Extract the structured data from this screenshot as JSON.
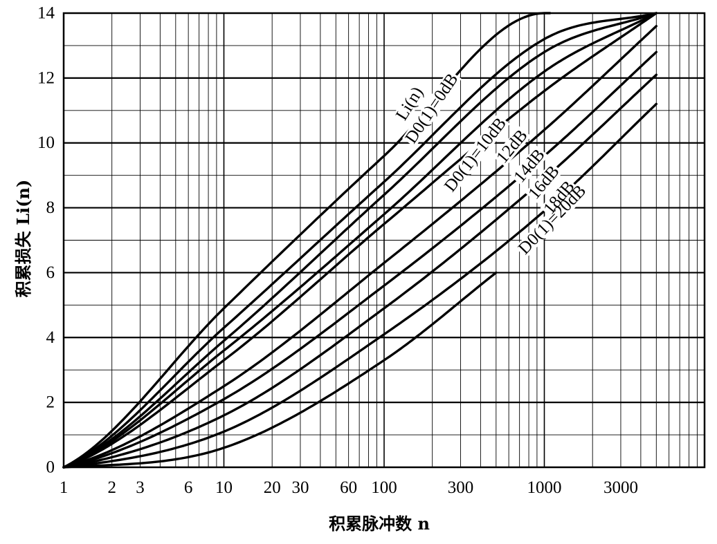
{
  "chart_data": {
    "type": "line",
    "title": "",
    "xlabel": "积累脉冲数 n",
    "ylabel": "积累损失 Li(n)",
    "x_scale": "log",
    "xlim": [
      1,
      10000
    ],
    "ylim": [
      0,
      14
    ],
    "grid": true,
    "x_tick_labels": [
      "1",
      "2",
      "3",
      "6",
      "10",
      "20",
      "30",
      "60",
      "100",
      "300",
      "1000",
      "3000"
    ],
    "y_tick_labels": [
      "0",
      "2",
      "4",
      "6",
      "8",
      "10",
      "12",
      "14"
    ],
    "series": [
      {
        "name": "Li(n) D0(1)=0dB",
        "x": [
          1,
          10,
          100,
          1000,
          5000
        ],
        "y": [
          0.0,
          4.9,
          9.6,
          14.0,
          14.0
        ]
      },
      {
        "name": "",
        "x": [
          1,
          10,
          100,
          1000,
          5000
        ],
        "y": [
          0.0,
          4.3,
          8.8,
          13.2,
          14.0
        ]
      },
      {
        "name": "",
        "x": [
          1,
          10,
          100,
          1000,
          5000
        ],
        "y": [
          0.0,
          3.9,
          8.4,
          12.8,
          14.0
        ]
      },
      {
        "name": "",
        "x": [
          1,
          10,
          100,
          1000,
          5000
        ],
        "y": [
          0.0,
          3.6,
          7.8,
          12.2,
          14.0
        ]
      },
      {
        "name": "D0(1)=10dB",
        "x": [
          1,
          10,
          100,
          1000,
          5000
        ],
        "y": [
          0.0,
          3.3,
          7.5,
          11.6,
          14.0
        ]
      },
      {
        "name": "12dB",
        "x": [
          1,
          10,
          100,
          1000,
          5000
        ],
        "y": [
          0.0,
          2.5,
          6.3,
          10.4,
          13.6
        ]
      },
      {
        "name": "14dB",
        "x": [
          1,
          10,
          100,
          1000,
          5000
        ],
        "y": [
          0.0,
          2.1,
          5.6,
          9.6,
          12.8
        ]
      },
      {
        "name": "16dB",
        "x": [
          1,
          10,
          100,
          1000,
          5000
        ],
        "y": [
          0.0,
          1.6,
          4.9,
          8.9,
          12.1
        ]
      },
      {
        "name": "18dB",
        "x": [
          1,
          10,
          100,
          1000,
          5000
        ],
        "y": [
          0.0,
          1.1,
          4.1,
          7.9,
          11.2
        ]
      },
      {
        "name": "D0(1)=20dB",
        "x": [
          1,
          10,
          100,
          500
        ],
        "y": [
          0.0,
          0.6,
          3.3,
          6.0
        ]
      }
    ],
    "curve_labels": [
      {
        "text": "Li(n)"
      },
      {
        "text": "D0(1)=0dB"
      },
      {
        "text": "D0(1)=10dB"
      },
      {
        "text": "12dB"
      },
      {
        "text": "14dB"
      },
      {
        "text": "16dB"
      },
      {
        "text": "18dB"
      },
      {
        "text": "D0(1)=20dB"
      }
    ]
  }
}
